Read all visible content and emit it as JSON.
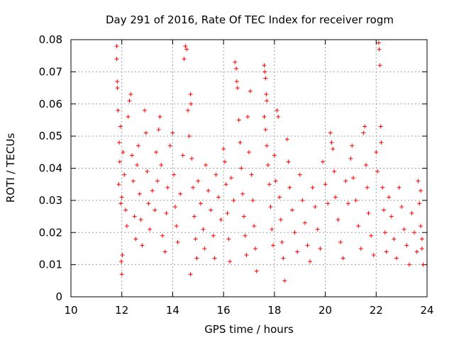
{
  "chart_data": {
    "type": "scatter",
    "title": "Day 291 of 2016, Rate Of TEC Index for receiver rogm",
    "xlabel": "GPS time / hours",
    "ylabel": "ROTI / TECUs",
    "xlim": [
      10,
      24
    ],
    "ylim": [
      0,
      0.08
    ],
    "xticks": [
      10,
      12,
      14,
      16,
      18,
      20,
      22,
      24
    ],
    "xtick_labels": [
      "10",
      "12",
      "14",
      "16",
      "18",
      "20",
      "22",
      "24"
    ],
    "yticks": [
      0,
      0.01,
      0.02,
      0.03,
      0.04,
      0.05,
      0.06,
      0.07,
      0.08
    ],
    "ytick_labels": [
      "0",
      "0.01",
      "0.02",
      "0.03",
      "0.04",
      "0.05",
      "0.06",
      "0.07",
      "0.08"
    ],
    "grid": true,
    "marker": "+",
    "color": "#ff0000",
    "series": [
      {
        "name": "ROTI",
        "points": [
          [
            11.8,
            0.078
          ],
          [
            11.8,
            0.074
          ],
          [
            11.82,
            0.067
          ],
          [
            11.83,
            0.065
          ],
          [
            11.85,
            0.058
          ],
          [
            11.9,
            0.048
          ],
          [
            11.95,
            0.053
          ],
          [
            11.88,
            0.035
          ],
          [
            11.92,
            0.042
          ],
          [
            11.96,
            0.029
          ],
          [
            12.0,
            0.031
          ],
          [
            12.02,
            0.013
          ],
          [
            11.98,
            0.011
          ],
          [
            12.0,
            0.007
          ],
          [
            12.05,
            0.045
          ],
          [
            12.1,
            0.038
          ],
          [
            12.15,
            0.027
          ],
          [
            12.2,
            0.022
          ],
          [
            12.25,
            0.056
          ],
          [
            12.3,
            0.061
          ],
          [
            12.35,
            0.063
          ],
          [
            12.4,
            0.044
          ],
          [
            12.45,
            0.036
          ],
          [
            12.5,
            0.025
          ],
          [
            12.55,
            0.018
          ],
          [
            12.6,
            0.041
          ],
          [
            12.65,
            0.047
          ],
          [
            12.7,
            0.032
          ],
          [
            12.75,
            0.024
          ],
          [
            12.8,
            0.016
          ],
          [
            12.9,
            0.058
          ],
          [
            12.95,
            0.051
          ],
          [
            13.0,
            0.039
          ],
          [
            13.05,
            0.029
          ],
          [
            13.1,
            0.021
          ],
          [
            13.2,
            0.033
          ],
          [
            13.3,
            0.027
          ],
          [
            13.35,
            0.045
          ],
          [
            13.4,
            0.036
          ],
          [
            13.45,
            0.052
          ],
          [
            13.5,
            0.056
          ],
          [
            13.55,
            0.041
          ],
          [
            13.6,
            0.019
          ],
          [
            13.7,
            0.014
          ],
          [
            13.75,
            0.026
          ],
          [
            13.8,
            0.034
          ],
          [
            13.9,
            0.047
          ],
          [
            14.0,
            0.051
          ],
          [
            14.05,
            0.038
          ],
          [
            14.1,
            0.028
          ],
          [
            14.15,
            0.022
          ],
          [
            14.2,
            0.017
          ],
          [
            14.3,
            0.032
          ],
          [
            14.4,
            0.044
          ],
          [
            14.45,
            0.074
          ],
          [
            14.5,
            0.078
          ],
          [
            14.55,
            0.077
          ],
          [
            14.6,
            0.058
          ],
          [
            14.65,
            0.05
          ],
          [
            14.7,
            0.063
          ],
          [
            14.72,
            0.06
          ],
          [
            14.75,
            0.043
          ],
          [
            14.8,
            0.034
          ],
          [
            14.85,
            0.025
          ],
          [
            14.9,
            0.018
          ],
          [
            14.95,
            0.012
          ],
          [
            14.7,
            0.007
          ],
          [
            15.0,
            0.036
          ],
          [
            15.1,
            0.029
          ],
          [
            15.2,
            0.021
          ],
          [
            15.25,
            0.015
          ],
          [
            15.3,
            0.041
          ],
          [
            15.4,
            0.033
          ],
          [
            15.5,
            0.027
          ],
          [
            15.6,
            0.019
          ],
          [
            15.65,
            0.012
          ],
          [
            15.7,
            0.038
          ],
          [
            15.8,
            0.031
          ],
          [
            15.9,
            0.024
          ],
          [
            16.0,
            0.046
          ],
          [
            16.05,
            0.042
          ],
          [
            16.1,
            0.035
          ],
          [
            16.15,
            0.026
          ],
          [
            16.2,
            0.018
          ],
          [
            16.25,
            0.011
          ],
          [
            16.3,
            0.037
          ],
          [
            16.4,
            0.03
          ],
          [
            16.45,
            0.073
          ],
          [
            16.5,
            0.071
          ],
          [
            16.52,
            0.067
          ],
          [
            16.55,
            0.065
          ],
          [
            16.6,
            0.055
          ],
          [
            16.65,
            0.048
          ],
          [
            16.7,
            0.04
          ],
          [
            16.75,
            0.032
          ],
          [
            16.8,
            0.025
          ],
          [
            16.85,
            0.019
          ],
          [
            16.9,
            0.013
          ],
          [
            16.95,
            0.056
          ],
          [
            17.0,
            0.045
          ],
          [
            17.05,
            0.064
          ],
          [
            17.1,
            0.038
          ],
          [
            17.15,
            0.03
          ],
          [
            17.2,
            0.022
          ],
          [
            17.25,
            0.015
          ],
          [
            17.3,
            0.008
          ],
          [
            17.6,
            0.072
          ],
          [
            17.62,
            0.07
          ],
          [
            17.65,
            0.068
          ],
          [
            17.68,
            0.063
          ],
          [
            17.7,
            0.061
          ],
          [
            17.6,
            0.056
          ],
          [
            17.65,
            0.052
          ],
          [
            17.7,
            0.047
          ],
          [
            17.75,
            0.041
          ],
          [
            17.8,
            0.035
          ],
          [
            17.85,
            0.028
          ],
          [
            17.9,
            0.021
          ],
          [
            17.95,
            0.016
          ],
          [
            18.0,
            0.044
          ],
          [
            18.05,
            0.036
          ],
          [
            18.1,
            0.058
          ],
          [
            18.15,
            0.056
          ],
          [
            18.2,
            0.031
          ],
          [
            18.25,
            0.024
          ],
          [
            18.3,
            0.017
          ],
          [
            18.35,
            0.012
          ],
          [
            18.4,
            0.005
          ],
          [
            18.5,
            0.049
          ],
          [
            18.55,
            0.042
          ],
          [
            18.6,
            0.034
          ],
          [
            18.7,
            0.027
          ],
          [
            18.8,
            0.02
          ],
          [
            18.9,
            0.014
          ],
          [
            19.0,
            0.038
          ],
          [
            19.1,
            0.03
          ],
          [
            19.2,
            0.023
          ],
          [
            19.3,
            0.016
          ],
          [
            19.4,
            0.011
          ],
          [
            19.5,
            0.034
          ],
          [
            19.6,
            0.028
          ],
          [
            19.7,
            0.021
          ],
          [
            19.8,
            0.015
          ],
          [
            19.9,
            0.042
          ],
          [
            20.0,
            0.035
          ],
          [
            20.1,
            0.029
          ],
          [
            20.2,
            0.051
          ],
          [
            20.25,
            0.048
          ],
          [
            20.3,
            0.046
          ],
          [
            20.35,
            0.039
          ],
          [
            20.4,
            0.031
          ],
          [
            20.5,
            0.024
          ],
          [
            20.6,
            0.017
          ],
          [
            20.7,
            0.012
          ],
          [
            20.8,
            0.036
          ],
          [
            20.9,
            0.029
          ],
          [
            21.0,
            0.043
          ],
          [
            21.05,
            0.047
          ],
          [
            21.1,
            0.037
          ],
          [
            21.2,
            0.03
          ],
          [
            21.3,
            0.022
          ],
          [
            21.4,
            0.015
          ],
          [
            21.5,
            0.051
          ],
          [
            21.55,
            0.053
          ],
          [
            21.6,
            0.041
          ],
          [
            21.65,
            0.034
          ],
          [
            21.7,
            0.026
          ],
          [
            21.8,
            0.019
          ],
          [
            21.9,
            0.013
          ],
          [
            22.0,
            0.045
          ],
          [
            22.05,
            0.039
          ],
          [
            22.1,
            0.079
          ],
          [
            22.12,
            0.077
          ],
          [
            22.15,
            0.072
          ],
          [
            22.18,
            0.053
          ],
          [
            22.2,
            0.048
          ],
          [
            22.25,
            0.034
          ],
          [
            22.3,
            0.027
          ],
          [
            22.35,
            0.02
          ],
          [
            22.4,
            0.014
          ],
          [
            22.5,
            0.031
          ],
          [
            22.6,
            0.025
          ],
          [
            22.7,
            0.018
          ],
          [
            22.8,
            0.012
          ],
          [
            22.9,
            0.034
          ],
          [
            23.0,
            0.028
          ],
          [
            23.1,
            0.021
          ],
          [
            23.2,
            0.016
          ],
          [
            23.3,
            0.01
          ],
          [
            23.4,
            0.026
          ],
          [
            23.5,
            0.02
          ],
          [
            23.6,
            0.014
          ],
          [
            23.65,
            0.036
          ],
          [
            23.7,
            0.029
          ],
          [
            23.75,
            0.022
          ],
          [
            23.8,
            0.015
          ],
          [
            23.85,
            0.01
          ],
          [
            23.75,
            0.033
          ],
          [
            23.8,
            0.018
          ]
        ]
      }
    ]
  }
}
